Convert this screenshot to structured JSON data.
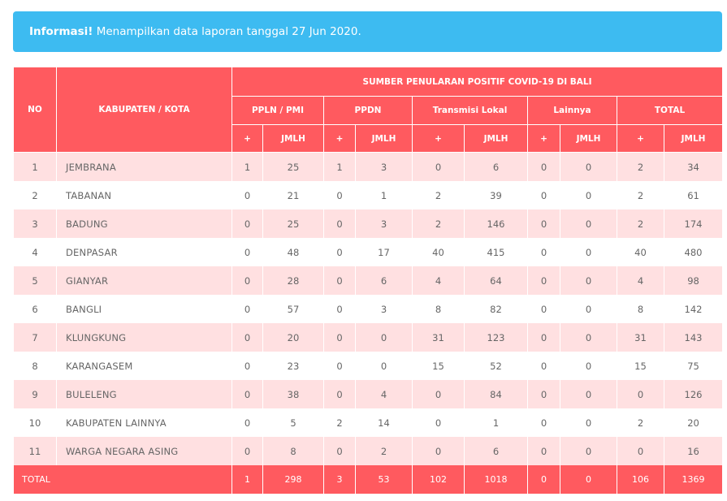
{
  "alert": {
    "bold": "Informasi!",
    "text": " Menampilkan data laporan tanggal 27 Jun 2020."
  },
  "headers": {
    "no": "NO",
    "kabupaten": "KABUPATEN / KOTA",
    "group": "SUMBER PENULARAN POSITIF COVID-19 DI BALI",
    "categories": [
      "PPLN / PMI",
      "PPDN",
      "Transmisi Lokal",
      "Lainnya",
      "TOTAL"
    ],
    "plus": "+",
    "jmlh": "JMLH"
  },
  "rows": [
    {
      "no": "1",
      "name": "JEMBRANA",
      "v": [
        "1",
        "25",
        "1",
        "3",
        "0",
        "6",
        "0",
        "0",
        "2",
        "34"
      ]
    },
    {
      "no": "2",
      "name": "TABANAN",
      "v": [
        "0",
        "21",
        "0",
        "1",
        "2",
        "39",
        "0",
        "0",
        "2",
        "61"
      ]
    },
    {
      "no": "3",
      "name": "BADUNG",
      "v": [
        "0",
        "25",
        "0",
        "3",
        "2",
        "146",
        "0",
        "0",
        "2",
        "174"
      ]
    },
    {
      "no": "4",
      "name": "DENPASAR",
      "v": [
        "0",
        "48",
        "0",
        "17",
        "40",
        "415",
        "0",
        "0",
        "40",
        "480"
      ]
    },
    {
      "no": "5",
      "name": "GIANYAR",
      "v": [
        "0",
        "28",
        "0",
        "6",
        "4",
        "64",
        "0",
        "0",
        "4",
        "98"
      ]
    },
    {
      "no": "6",
      "name": "BANGLI",
      "v": [
        "0",
        "57",
        "0",
        "3",
        "8",
        "82",
        "0",
        "0",
        "8",
        "142"
      ]
    },
    {
      "no": "7",
      "name": "KLUNGKUNG",
      "v": [
        "0",
        "20",
        "0",
        "0",
        "31",
        "123",
        "0",
        "0",
        "31",
        "143"
      ]
    },
    {
      "no": "8",
      "name": "KARANGASEM",
      "v": [
        "0",
        "23",
        "0",
        "0",
        "15",
        "52",
        "0",
        "0",
        "15",
        "75"
      ]
    },
    {
      "no": "9",
      "name": "BULELENG",
      "v": [
        "0",
        "38",
        "0",
        "4",
        "0",
        "84",
        "0",
        "0",
        "0",
        "126"
      ]
    },
    {
      "no": "10",
      "name": "KABUPATEN LAINNYA",
      "v": [
        "0",
        "5",
        "2",
        "14",
        "0",
        "1",
        "0",
        "0",
        "2",
        "20"
      ]
    },
    {
      "no": "11",
      "name": "WARGA NEGARA ASING",
      "v": [
        "0",
        "8",
        "0",
        "2",
        "0",
        "6",
        "0",
        "0",
        "0",
        "16"
      ]
    }
  ],
  "total": {
    "label": "TOTAL",
    "v": [
      "1",
      "298",
      "3",
      "53",
      "102",
      "1018",
      "0",
      "0",
      "106",
      "1369"
    ]
  },
  "colors": {
    "alert_bg": "#3dbbf1",
    "header_bg": "#ff5a5f",
    "row_odd_bg": "#ffe0e1",
    "row_even_bg": "#ffffff"
  }
}
